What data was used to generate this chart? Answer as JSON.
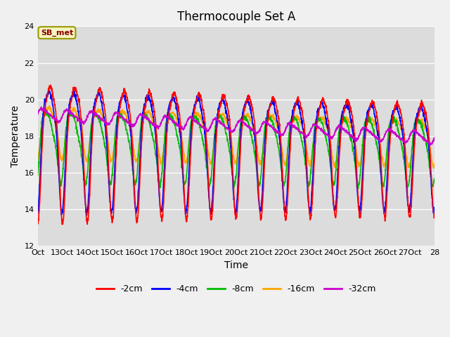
{
  "title": "Thermocouple Set A",
  "xlabel": "Time",
  "ylabel": "Temperature",
  "ylim": [
    12,
    24
  ],
  "yticks": [
    12,
    14,
    16,
    18,
    20,
    22,
    24
  ],
  "xtick_labels": [
    "Oct",
    "13Oct",
    "14Oct",
    "15Oct",
    "16Oct",
    "17Oct",
    "18Oct",
    "19Oct",
    "20Oct",
    "21Oct",
    "22Oct",
    "23Oct",
    "24Oct",
    "25Oct",
    "26Oct",
    "27Oct",
    "28"
  ],
  "xtick_positions": [
    0,
    1,
    2,
    3,
    4,
    5,
    6,
    7,
    8,
    9,
    10,
    11,
    12,
    13,
    14,
    15,
    16
  ],
  "annotation_text": "SB_met",
  "colors": {
    "-2cm": "#ff0000",
    "-4cm": "#0000ff",
    "-8cm": "#00bb00",
    "-16cm": "#ffa500",
    "-32cm": "#cc00cc"
  },
  "legend_labels": [
    "-2cm",
    "-4cm",
    "-8cm",
    "-16cm",
    "-32cm"
  ],
  "bg_color": "#dcdcdc",
  "fig_bg_color": "#f0f0f0",
  "title_fontsize": 12,
  "axis_fontsize": 10,
  "tick_fontsize": 8,
  "linewidth": 1.2
}
